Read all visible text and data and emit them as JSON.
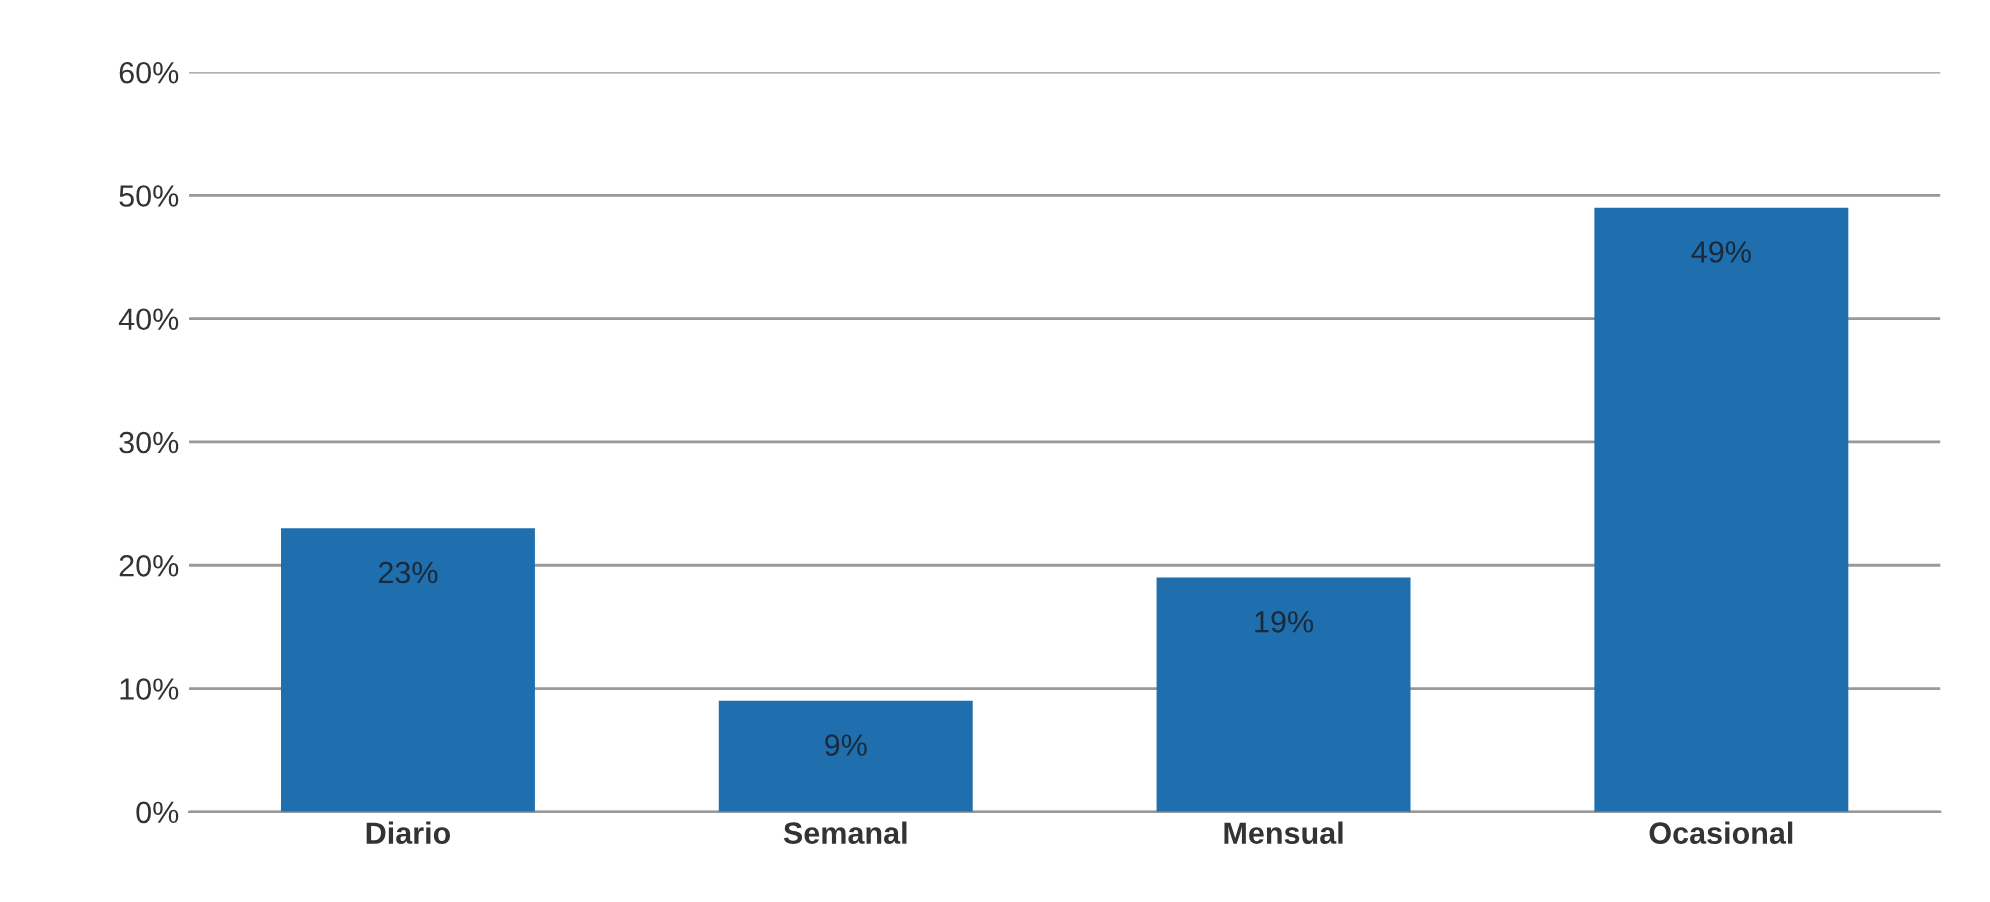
{
  "chart_data": {
    "type": "bar",
    "categories": [
      "Diario",
      "Semanal",
      "Mensual",
      "Ocasional"
    ],
    "values": [
      23,
      9,
      19,
      49
    ],
    "value_labels": [
      "23%",
      "9%",
      "19%",
      "49%"
    ],
    "color": "#1f6fae",
    "ylim": [
      0,
      60
    ],
    "yticks": [
      {
        "value": 0,
        "label": "0%"
      },
      {
        "value": 10,
        "label": "10%"
      },
      {
        "value": 20,
        "label": "20%"
      },
      {
        "value": 30,
        "label": "30%"
      },
      {
        "value": 40,
        "label": "40%"
      },
      {
        "value": 50,
        "label": "50%"
      },
      {
        "value": 60,
        "label": "60%"
      }
    ],
    "grid": "y"
  }
}
